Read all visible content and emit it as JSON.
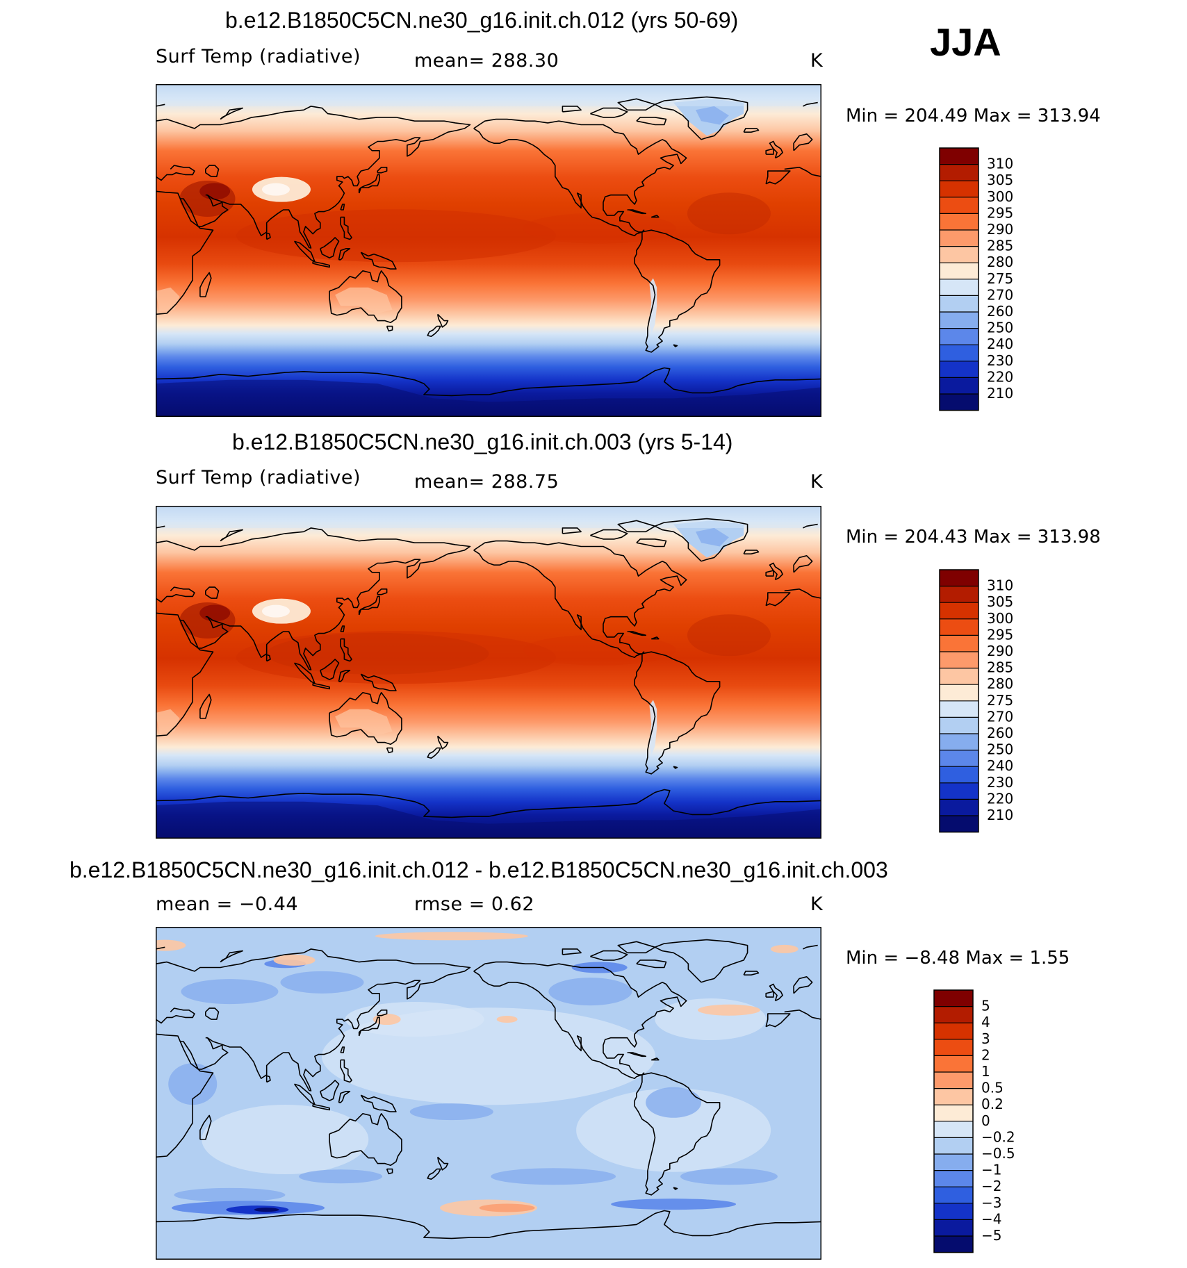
{
  "season": "JJA",
  "panels": [
    {
      "title": "b.e12.B1850C5CN.ne30_g16.init.ch.012 (yrs 50-69)",
      "left_label": "Surf Temp (radiative)",
      "center_label": "mean= 288.30",
      "units": "K",
      "minmax": "Min = 204.49 Max = 313.94",
      "colorbar_labels": [
        "310",
        "305",
        "300",
        "295",
        "290",
        "285",
        "280",
        "275",
        "270",
        "260",
        "250",
        "240",
        "230",
        "220",
        "210"
      ],
      "palette": "temp"
    },
    {
      "title": "b.e12.B1850C5CN.ne30_g16.init.ch.003 (yrs 5-14)",
      "left_label": "Surf Temp (radiative)",
      "center_label": "mean= 288.75",
      "units": "K",
      "minmax": "Min = 204.43 Max = 313.98",
      "colorbar_labels": [
        "310",
        "305",
        "300",
        "295",
        "290",
        "285",
        "280",
        "275",
        "270",
        "260",
        "250",
        "240",
        "230",
        "220",
        "210"
      ],
      "palette": "temp"
    },
    {
      "title": "b.e12.B1850C5CN.ne30_g16.init.ch.012 - b.e12.B1850C5CN.ne30_g16.init.ch.003",
      "left_label": "mean = −0.44",
      "center_label": "rmse = 0.62",
      "units": "K",
      "minmax": "Min = −8.48 Max = 1.55",
      "colorbar_labels": [
        "5",
        "4",
        "3",
        "2",
        "1",
        "0.5",
        "0.2",
        "0",
        "−0.2",
        "−0.5",
        "−1",
        "−2",
        "−3",
        "−4",
        "−5"
      ],
      "palette": "diff"
    }
  ],
  "colors": {
    "temp": [
      "#7f0000",
      "#b31c00",
      "#d63200",
      "#ec4d12",
      "#fa7437",
      "#fd9a6b",
      "#fdc6a3",
      "#fdebd6",
      "#d6e6f7",
      "#b2cff2",
      "#86adee",
      "#5c87ea",
      "#2f5fe0",
      "#1433c8",
      "#0a1a9e",
      "#050c6e"
    ],
    "diff": [
      "#7f0000",
      "#b31c00",
      "#d63200",
      "#ec4d12",
      "#fa7437",
      "#fd9a6b",
      "#fdc6a3",
      "#fdebd6",
      "#d6e6f7",
      "#b2cff2",
      "#86adee",
      "#5c87ea",
      "#2f5fe0",
      "#1433c8",
      "#0a1a9e",
      "#050c6e"
    ]
  }
}
